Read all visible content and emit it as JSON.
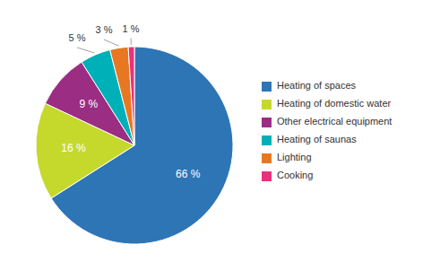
{
  "chart_data": {
    "type": "pie",
    "categories": [
      "Heating of spaces",
      "Heating of domestic water",
      "Other electrical equipment",
      "Heating of saunas",
      "Lighting",
      "Cooking"
    ],
    "values": [
      66,
      16,
      9,
      5,
      3,
      1
    ],
    "value_labels": [
      "66 %",
      "16 %",
      "9 %",
      "5 %",
      "3 %",
      "1 %"
    ],
    "colors": [
      "#2e75b6",
      "#c5d92d",
      "#9b2d82",
      "#00b0b9",
      "#e87722",
      "#e8327c"
    ],
    "data_labels": true,
    "legend": "right"
  }
}
